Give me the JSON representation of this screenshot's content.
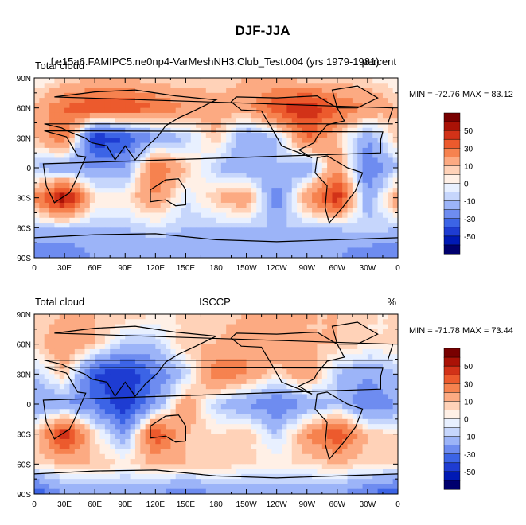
{
  "figure": {
    "title": "DJF-JJA"
  },
  "palette": [
    "#00006e",
    "#0019b4",
    "#1e3cd2",
    "#3c64e6",
    "#6e8cf0",
    "#9cb4f8",
    "#c6d6fc",
    "#e8f0ff",
    "#fff0e6",
    "#ffd2b8",
    "#fcaa82",
    "#f6824f",
    "#ec5a2d",
    "#d23218",
    "#aa1206",
    "#780000"
  ],
  "colorbar": {
    "labels": [
      "50",
      "30",
      "10",
      "0",
      "-10",
      "-30",
      "-50"
    ]
  },
  "axes": {
    "lat_ticks": [
      "90N",
      "60N",
      "30N",
      "0",
      "30S",
      "60S",
      "90S"
    ],
    "lon_ticks": [
      "0",
      "30E",
      "60E",
      "90E",
      "120E",
      "150E",
      "180",
      "150W",
      "120W",
      "90W",
      "60W",
      "30W",
      "0"
    ]
  },
  "chart_data": [
    {
      "type": "heatmap",
      "left_label": "Total cloud",
      "center_label": "f.e15a6.FAMIPC5.ne0np4-VarMeshNH3.Club_Test.004 (yrs 1979-1981)",
      "right_label": "percent",
      "min_max_text": "MIN = -72.76 MAX =  83.12",
      "xlim": [
        0,
        360
      ],
      "ylim": [
        -90,
        90
      ],
      "grid_lons": [
        0,
        30,
        60,
        90,
        120,
        150,
        180,
        210,
        240,
        270,
        300,
        330,
        360
      ],
      "grid_lats": [
        90,
        60,
        30,
        0,
        -30,
        -60,
        -90
      ],
      "values": [
        [
          0,
          5,
          10,
          10,
          5,
          5,
          5,
          10,
          10,
          5,
          5,
          5,
          0
        ],
        [
          10,
          30,
          40,
          40,
          30,
          20,
          15,
          15,
          40,
          50,
          30,
          20,
          10
        ],
        [
          10,
          30,
          -50,
          -40,
          -20,
          -10,
          10,
          -20,
          -10,
          30,
          10,
          -20,
          10
        ],
        [
          -10,
          -20,
          -20,
          -20,
          30,
          10,
          -10,
          -20,
          -10,
          -20,
          20,
          -30,
          -10
        ],
        [
          20,
          60,
          5,
          5,
          20,
          -5,
          10,
          20,
          -30,
          20,
          50,
          -20,
          20
        ],
        [
          -10,
          -10,
          -10,
          -10,
          -5,
          -10,
          -10,
          -10,
          -10,
          -10,
          -10,
          -5,
          -10
        ],
        [
          -30,
          -30,
          -20,
          -20,
          -20,
          -20,
          -20,
          -20,
          -20,
          -20,
          -20,
          -30,
          -30
        ]
      ]
    },
    {
      "type": "heatmap",
      "left_label": "Total cloud",
      "center_label": "ISCCP",
      "right_label": "%",
      "min_max_text": "MIN = -71.78 MAX =  73.44",
      "xlim": [
        0,
        360
      ],
      "ylim": [
        -90,
        90
      ],
      "grid_lons": [
        0,
        30,
        60,
        90,
        120,
        150,
        180,
        210,
        240,
        270,
        300,
        330,
        360
      ],
      "grid_lats": [
        90,
        60,
        30,
        0,
        -30,
        -60,
        -90
      ],
      "values": [
        [
          5,
          10,
          10,
          10,
          5,
          5,
          5,
          10,
          10,
          10,
          10,
          5,
          5
        ],
        [
          5,
          20,
          10,
          -10,
          -10,
          10,
          10,
          20,
          20,
          10,
          10,
          5,
          5
        ],
        [
          -10,
          10,
          -40,
          -50,
          -30,
          -10,
          30,
          20,
          5,
          20,
          -10,
          -20,
          -10
        ],
        [
          -20,
          -20,
          -30,
          -50,
          -20,
          20,
          -10,
          -20,
          -30,
          -20,
          -10,
          -30,
          -20
        ],
        [
          5,
          50,
          5,
          -20,
          40,
          10,
          5,
          10,
          -10,
          20,
          40,
          10,
          5
        ],
        [
          5,
          10,
          10,
          5,
          10,
          10,
          10,
          5,
          5,
          5,
          10,
          5,
          5
        ],
        [
          -40,
          -20,
          -20,
          -20,
          -20,
          -30,
          -20,
          -20,
          -20,
          -20,
          -20,
          -30,
          -40
        ]
      ]
    }
  ]
}
